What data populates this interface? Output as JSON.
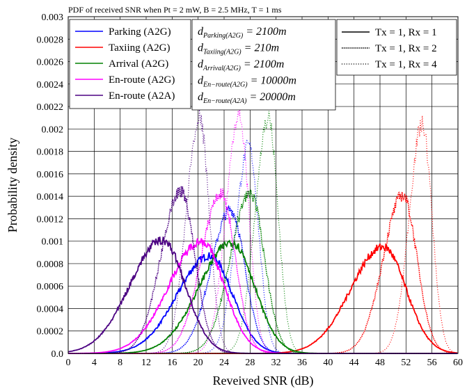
{
  "chart_data": {
    "type": "line",
    "title": "PDF of received SNR when Pt = 2 mW, B = 2.5 MHz, T = 1 ms",
    "xlabel": "Reveived SNR (dB)",
    "ylabel": "Probability density",
    "xlim": [
      0,
      60
    ],
    "ylim": [
      0,
      0.003
    ],
    "x_ticks": [
      "0",
      "4",
      "8",
      "12",
      "16",
      "20",
      "24",
      "28",
      "32",
      "36",
      "40",
      "44",
      "48",
      "52",
      "56",
      "60"
    ],
    "y_ticks": [
      "0.0",
      "0.0002",
      "0.0004",
      "0.0006",
      "0.0008",
      "0.001",
      "0.0012",
      "0.0014",
      "0.0016",
      "0.0018",
      "0.002",
      "0.0022",
      "0.0024",
      "0.0026",
      "0.0028",
      "0.003"
    ],
    "grid": true,
    "legend_scenarios": [
      {
        "name": "Parking (A2G)",
        "color": "#0000ff"
      },
      {
        "name": "Taxiing (A2G)",
        "color": "#ff0000"
      },
      {
        "name": "Arrival (A2G)",
        "color": "#008000"
      },
      {
        "name": "En-route (A2G)",
        "color": "#ff00ff"
      },
      {
        "name": "En-route (A2A)",
        "color": "#4b0082"
      }
    ],
    "legend_antennas": [
      {
        "name": "Tx = 1, Rx = 1",
        "style": "solid"
      },
      {
        "name": "Tx = 1, Rx = 2",
        "style": "dotted"
      },
      {
        "name": "Tx = 1, Rx = 4",
        "style": "loose-dotted"
      }
    ],
    "series": [
      {
        "scenario": "Parking (A2G)",
        "config": "Tx = 1, Rx = 1",
        "color": "#0000ff",
        "peak_x": 21.8,
        "peak_y": 0.00087,
        "sigma_left": 5.0,
        "sigma_right": 3.5
      },
      {
        "scenario": "Parking (A2G)",
        "config": "Tx = 1, Rx = 2",
        "color": "#0000ff",
        "peak_x": 25.0,
        "peak_y": 0.00128,
        "sigma_left": 3.0,
        "sigma_right": 2.2
      },
      {
        "scenario": "Parking (A2G)",
        "config": "Tx = 1, Rx = 4",
        "color": "#0000ff",
        "peak_x": 27.8,
        "peak_y": 0.00185,
        "sigma_left": 2.0,
        "sigma_right": 1.5
      },
      {
        "scenario": "Taxiing (A2G)",
        "config": "Tx = 1, Rx = 1",
        "color": "#ff0000",
        "peak_x": 48.5,
        "peak_y": 0.00095,
        "sigma_left": 5.0,
        "sigma_right": 3.5
      },
      {
        "scenario": "Taxiing (A2G)",
        "config": "Tx = 1, Rx = 2",
        "color": "#ff0000",
        "peak_x": 51.5,
        "peak_y": 0.00141,
        "sigma_left": 3.0,
        "sigma_right": 2.2
      },
      {
        "scenario": "Taxiing (A2G)",
        "config": "Tx = 1, Rx = 4",
        "color": "#ff0000",
        "peak_x": 54.5,
        "peak_y": 0.00204,
        "sigma_left": 2.0,
        "sigma_right": 1.5
      },
      {
        "scenario": "Arrival (A2G)",
        "config": "Tx = 1, Rx = 1",
        "color": "#008000",
        "peak_x": 25.2,
        "peak_y": 0.00099,
        "sigma_left": 5.0,
        "sigma_right": 3.5
      },
      {
        "scenario": "Arrival (A2G)",
        "config": "Tx = 1, Rx = 2",
        "color": "#008000",
        "peak_x": 28.0,
        "peak_y": 0.00143,
        "sigma_left": 3.0,
        "sigma_right": 2.2
      },
      {
        "scenario": "Arrival (A2G)",
        "config": "Tx = 1, Rx = 4",
        "color": "#008000",
        "peak_x": 30.8,
        "peak_y": 0.0021,
        "sigma_left": 2.0,
        "sigma_right": 1.5
      },
      {
        "scenario": "En-route (A2G)",
        "config": "Tx = 1, Rx = 1",
        "color": "#ff00ff",
        "peak_x": 20.5,
        "peak_y": 0.001,
        "sigma_left": 5.0,
        "sigma_right": 3.5
      },
      {
        "scenario": "En-route (A2G)",
        "config": "Tx = 1, Rx = 2",
        "color": "#ff00ff",
        "peak_x": 23.5,
        "peak_y": 0.00143,
        "sigma_left": 3.0,
        "sigma_right": 2.2
      },
      {
        "scenario": "En-route (A2G)",
        "config": "Tx = 1, Rx = 4",
        "color": "#ff00ff",
        "peak_x": 26.3,
        "peak_y": 0.00213,
        "sigma_left": 2.0,
        "sigma_right": 1.5
      },
      {
        "scenario": "En-route (A2A)",
        "config": "Tx = 1, Rx = 1",
        "color": "#4b0082",
        "peak_x": 14.5,
        "peak_y": 0.00101,
        "sigma_left": 5.0,
        "sigma_right": 3.5
      },
      {
        "scenario": "En-route (A2A)",
        "config": "Tx = 1, Rx = 2",
        "color": "#4b0082",
        "peak_x": 17.3,
        "peak_y": 0.00145,
        "sigma_left": 3.0,
        "sigma_right": 2.2
      },
      {
        "scenario": "En-route (A2A)",
        "config": "Tx = 1, Rx = 4",
        "color": "#4b0082",
        "peak_x": 20.2,
        "peak_y": 0.0021,
        "sigma_left": 2.0,
        "sigma_right": 1.5
      }
    ],
    "annotations": [
      {
        "main": "d",
        "sub": "Parking(A2G)",
        "value": "= 2100m"
      },
      {
        "main": "d",
        "sub": "Taxiing(A2G)",
        "value": "= 210m"
      },
      {
        "main": "d",
        "sub": "Arrival(A2G)",
        "value": "= 2100m"
      },
      {
        "main": "d",
        "sub": "En−route(A2G)",
        "value": "= 10000m"
      },
      {
        "main": "d",
        "sub": "En−route(A2A)",
        "value": "= 20000m"
      }
    ]
  }
}
